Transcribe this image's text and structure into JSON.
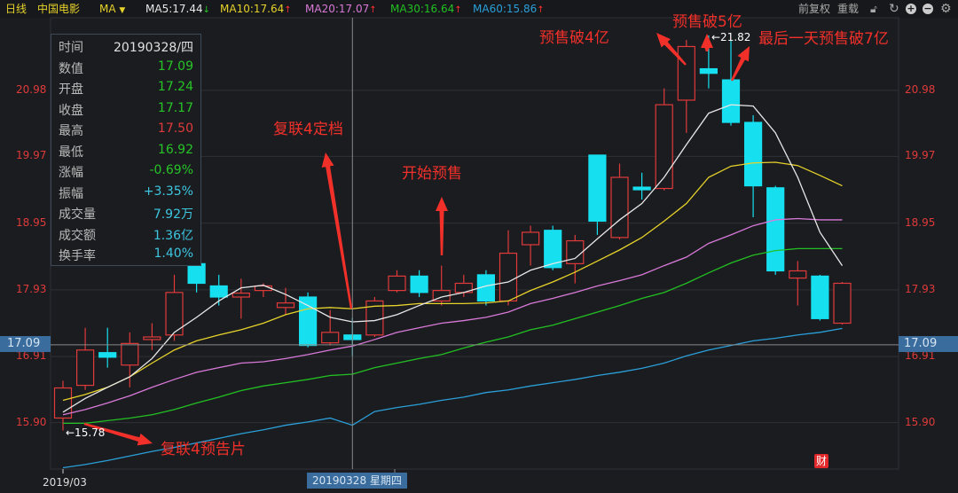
{
  "toolbar": {
    "period": "日线",
    "stock_name": "中国电影",
    "indicator": "MA",
    "ma5": "MA5:17.44",
    "ma5_dir": "↓",
    "ma10": "MA10:17.64",
    "ma10_dir": "↑",
    "ma20": "MA20:17.07",
    "ma20_dir": "↑",
    "ma30": "MA30:16.64",
    "ma30_dir": "↑",
    "ma60": "MA60:15.86",
    "ma60_dir": "↑",
    "adjust": "前复权",
    "reload": "重载",
    "icons": [
      "unlock-icon",
      "refresh-icon",
      "zoom-in-icon",
      "zoom-out-icon",
      "gear-icon"
    ]
  },
  "info_panel": {
    "rows": [
      {
        "k": "时间",
        "v": "20190328/四",
        "color": "#e0e0e0"
      },
      {
        "k": "数值",
        "v": "17.09",
        "color": "#27c427"
      },
      {
        "k": "开盘",
        "v": "17.24",
        "color": "#27c427"
      },
      {
        "k": "收盘",
        "v": "17.17",
        "color": "#27c427"
      },
      {
        "k": "最高",
        "v": "17.50",
        "color": "#e03a3a"
      },
      {
        "k": "最低",
        "v": "16.92",
        "color": "#27c427"
      },
      {
        "k": "涨幅",
        "v": "-0.69%",
        "color": "#27c427"
      },
      {
        "k": "振幅",
        "v": "+3.35%",
        "color": "#3cc6e0"
      },
      {
        "k": "成交量",
        "v": "7.92万",
        "color": "#3cc6e0"
      },
      {
        "k": "成交额",
        "v": "1.36亿",
        "color": "#3cc6e0"
      },
      {
        "k": "换手率",
        "v": "1.40%",
        "color": "#3cc6e0"
      }
    ]
  },
  "axis": {
    "y_ticks": [
      "20.98",
      "19.97",
      "18.95",
      "17.93",
      "16.91",
      "15.90"
    ],
    "crosshair_value": "17.09",
    "x_start_label": "2019/03",
    "crosshair_date": "20190328 星期四"
  },
  "marks": {
    "high": "←21.82",
    "low": "←15.78",
    "badge": "财"
  },
  "annotations": {
    "a1": "复联4预告片",
    "a2": "复联4定档",
    "a3": "开始预售",
    "a4": "预售破4亿",
    "a5": "预售破5亿",
    "a6": "最后一天预售破7亿"
  },
  "chart_data": {
    "type": "candlestick",
    "ylim": [
      15.19,
      22.09
    ],
    "y_ticks": [
      20.98,
      19.97,
      18.95,
      17.93,
      16.91,
      15.9
    ],
    "crosshair": {
      "index": 13,
      "value": 17.09
    },
    "grid": true,
    "colors": {
      "up": "#e03a3a",
      "down": "#16e0f0",
      "ma5": "#e8e8e8",
      "ma10": "#e6d22a",
      "ma20": "#d879d8",
      "ma30": "#22c022",
      "ma60": "#2a9fd8"
    },
    "candles": [
      [
        15.97,
        16.43,
        16.54,
        15.78
      ],
      [
        16.47,
        17.01,
        17.35,
        16.4
      ],
      [
        16.97,
        16.9,
        17.35,
        16.74
      ],
      [
        16.78,
        17.11,
        17.28,
        16.44
      ],
      [
        17.17,
        17.21,
        17.42,
        17.01
      ],
      [
        17.24,
        17.89,
        18.16,
        17.15
      ],
      [
        18.33,
        18.03,
        18.57,
        17.89
      ],
      [
        17.99,
        17.82,
        18.16,
        17.69
      ],
      [
        17.82,
        17.88,
        18.1,
        17.49
      ],
      [
        17.92,
        17.99,
        18.03,
        17.82
      ],
      [
        17.66,
        17.73,
        17.96,
        17.55
      ],
      [
        17.82,
        17.08,
        17.89,
        17.05
      ],
      [
        17.12,
        17.28,
        17.62,
        17.08
      ],
      [
        17.24,
        17.17,
        17.5,
        16.92
      ],
      [
        17.24,
        17.76,
        17.82,
        17.21
      ],
      [
        17.92,
        18.14,
        18.23,
        17.89
      ],
      [
        18.14,
        17.89,
        18.23,
        17.82
      ],
      [
        17.76,
        17.92,
        18.3,
        17.69
      ],
      [
        17.89,
        18.03,
        18.16,
        17.82
      ],
      [
        18.16,
        17.76,
        18.23,
        17.69
      ],
      [
        17.76,
        18.49,
        18.84,
        17.69
      ],
      [
        18.62,
        18.81,
        18.91,
        18.3
      ],
      [
        18.84,
        18.27,
        18.91,
        18.23
      ],
      [
        18.33,
        18.68,
        18.77,
        18.03
      ],
      [
        19.99,
        18.98,
        19.99,
        18.77
      ],
      [
        18.73,
        19.65,
        19.86,
        18.7
      ],
      [
        19.5,
        19.46,
        19.72,
        19.31
      ],
      [
        19.48,
        20.76,
        21.01,
        19.45
      ],
      [
        20.83,
        21.65,
        21.75,
        20.33
      ],
      [
        21.31,
        21.24,
        21.82,
        21.01
      ],
      [
        21.14,
        20.49,
        21.75,
        20.44
      ],
      [
        20.49,
        19.52,
        20.6,
        19.04
      ],
      [
        19.49,
        18.22,
        19.52,
        18.16
      ],
      [
        18.11,
        18.22,
        18.37,
        17.69
      ],
      [
        18.14,
        17.49,
        18.16,
        17.46
      ],
      [
        17.42,
        18.03,
        18.05,
        17.4
      ]
    ],
    "candle_fields": [
      "open",
      "close",
      "high",
      "low"
    ],
    "ma": {
      "ma5": [
        16.06,
        16.27,
        16.44,
        16.6,
        16.88,
        17.28,
        17.51,
        17.76,
        17.96,
        18.0,
        17.86,
        17.69,
        17.51,
        17.44,
        17.46,
        17.55,
        17.69,
        17.82,
        17.89,
        17.99,
        18.05,
        18.23,
        18.33,
        18.41,
        18.71,
        19.0,
        19.25,
        19.65,
        20.15,
        20.63,
        20.76,
        20.74,
        20.33,
        19.65,
        18.81,
        18.3
      ],
      "ma10": [
        16.24,
        16.33,
        16.44,
        16.6,
        16.81,
        17.01,
        17.15,
        17.24,
        17.32,
        17.42,
        17.55,
        17.64,
        17.66,
        17.64,
        17.68,
        17.69,
        17.72,
        17.72,
        17.72,
        17.73,
        17.76,
        17.92,
        18.05,
        18.2,
        18.37,
        18.54,
        18.73,
        18.98,
        19.25,
        19.65,
        19.82,
        19.87,
        19.88,
        19.83,
        19.68,
        19.52
      ],
      "ma20": [
        16.02,
        16.1,
        16.2,
        16.31,
        16.44,
        16.56,
        16.67,
        16.74,
        16.81,
        16.83,
        16.88,
        16.94,
        17.01,
        17.07,
        17.17,
        17.28,
        17.35,
        17.42,
        17.46,
        17.51,
        17.59,
        17.72,
        17.8,
        17.89,
        17.99,
        18.07,
        18.16,
        18.3,
        18.43,
        18.64,
        18.77,
        18.91,
        19.0,
        19.02,
        19.0,
        19.0
      ],
      "ma30": [
        15.89,
        15.89,
        15.93,
        15.97,
        16.02,
        16.1,
        16.2,
        16.29,
        16.39,
        16.46,
        16.51,
        16.56,
        16.62,
        16.64,
        16.74,
        16.81,
        16.88,
        16.94,
        17.04,
        17.13,
        17.21,
        17.32,
        17.39,
        17.49,
        17.59,
        17.69,
        17.8,
        17.89,
        18.03,
        18.19,
        18.34,
        18.46,
        18.53,
        18.56,
        18.56,
        18.56
      ],
      "ma60": [
        15.21,
        15.26,
        15.32,
        15.39,
        15.46,
        15.52,
        15.59,
        15.66,
        15.73,
        15.79,
        15.86,
        15.91,
        15.97,
        15.86,
        16.07,
        16.13,
        16.18,
        16.24,
        16.29,
        16.36,
        16.4,
        16.46,
        16.51,
        16.56,
        16.62,
        16.67,
        16.73,
        16.81,
        16.92,
        17.01,
        17.08,
        17.15,
        17.19,
        17.24,
        17.28,
        17.34
      ]
    }
  }
}
